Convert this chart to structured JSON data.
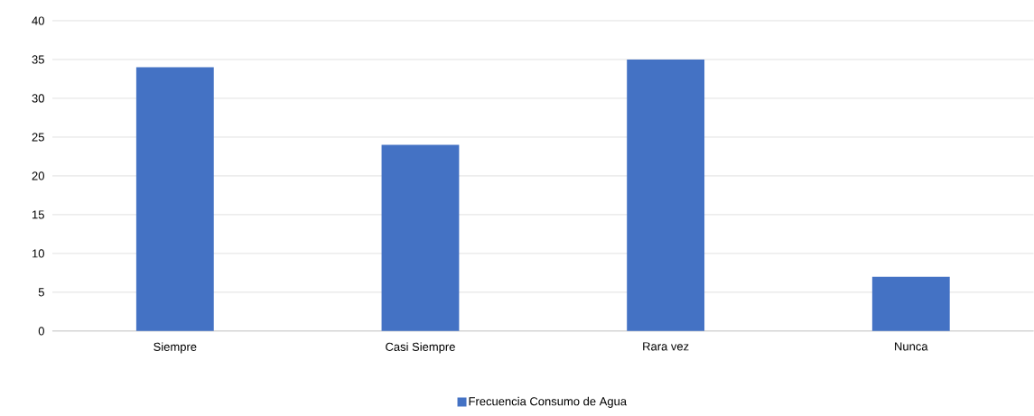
{
  "chart_data": {
    "type": "bar",
    "categories": [
      "Siempre",
      "Casi Siempre",
      "Rara vez",
      "Nunca"
    ],
    "series": [
      {
        "name": "Frecuencia Consumo de Agua",
        "color": "#4472c4",
        "values": [
          34,
          24,
          35,
          7
        ]
      }
    ],
    "ylim": [
      0,
      40
    ],
    "yticks": [
      0,
      5,
      10,
      15,
      20,
      25,
      30,
      35,
      40
    ],
    "grid": "y",
    "legend": "bottom"
  }
}
